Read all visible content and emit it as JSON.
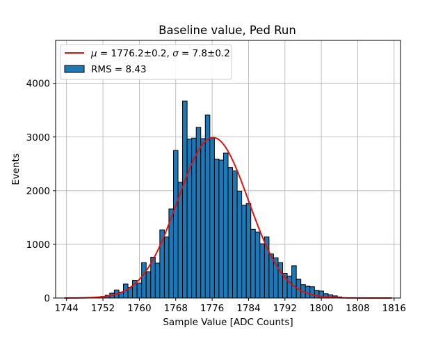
{
  "chart_data": {
    "type": "bar",
    "title": "Baseline value, Ped Run",
    "xlabel": "Sample Value [ADC Counts]",
    "ylabel": "Events",
    "xlim": [
      1741.6,
      1817.4
    ],
    "ylim": [
      0,
      4800
    ],
    "xticks": [
      1744,
      1752,
      1760,
      1768,
      1776,
      1784,
      1792,
      1800,
      1808,
      1816
    ],
    "yticks": [
      0,
      1000,
      2000,
      3000,
      4000
    ],
    "grid": true,
    "legend_position": "top-left",
    "bin_width": 1,
    "bins": [
      {
        "x": 1752,
        "y": 30
      },
      {
        "x": 1753,
        "y": 50
      },
      {
        "x": 1754,
        "y": 90
      },
      {
        "x": 1755,
        "y": 150
      },
      {
        "x": 1756,
        "y": 110
      },
      {
        "x": 1757,
        "y": 260
      },
      {
        "x": 1758,
        "y": 200
      },
      {
        "x": 1759,
        "y": 330
      },
      {
        "x": 1760,
        "y": 280
      },
      {
        "x": 1761,
        "y": 660
      },
      {
        "x": 1762,
        "y": 490
      },
      {
        "x": 1763,
        "y": 760
      },
      {
        "x": 1764,
        "y": 650
      },
      {
        "x": 1765,
        "y": 1270
      },
      {
        "x": 1766,
        "y": 1140
      },
      {
        "x": 1767,
        "y": 1660
      },
      {
        "x": 1768,
        "y": 2750
      },
      {
        "x": 1769,
        "y": 2160
      },
      {
        "x": 1770,
        "y": 3670
      },
      {
        "x": 1771,
        "y": 2960
      },
      {
        "x": 1772,
        "y": 2980
      },
      {
        "x": 1773,
        "y": 3180
      },
      {
        "x": 1774,
        "y": 2970
      },
      {
        "x": 1775,
        "y": 3410
      },
      {
        "x": 1776,
        "y": 2980
      },
      {
        "x": 1777,
        "y": 2590
      },
      {
        "x": 1778,
        "y": 2570
      },
      {
        "x": 1779,
        "y": 2700
      },
      {
        "x": 1780,
        "y": 2430
      },
      {
        "x": 1781,
        "y": 2370
      },
      {
        "x": 1782,
        "y": 1990
      },
      {
        "x": 1783,
        "y": 1730
      },
      {
        "x": 1784,
        "y": 1760
      },
      {
        "x": 1785,
        "y": 1280
      },
      {
        "x": 1786,
        "y": 1230
      },
      {
        "x": 1787,
        "y": 1010
      },
      {
        "x": 1788,
        "y": 1140
      },
      {
        "x": 1789,
        "y": 820
      },
      {
        "x": 1790,
        "y": 750
      },
      {
        "x": 1791,
        "y": 660
      },
      {
        "x": 1792,
        "y": 460
      },
      {
        "x": 1793,
        "y": 410
      },
      {
        "x": 1794,
        "y": 600
      },
      {
        "x": 1795,
        "y": 350
      },
      {
        "x": 1796,
        "y": 250
      },
      {
        "x": 1797,
        "y": 220
      },
      {
        "x": 1798,
        "y": 210
      },
      {
        "x": 1799,
        "y": 140
      },
      {
        "x": 1800,
        "y": 130
      },
      {
        "x": 1801,
        "y": 80
      },
      {
        "x": 1802,
        "y": 60
      },
      {
        "x": 1803,
        "y": 40
      },
      {
        "x": 1804,
        "y": 20
      }
    ],
    "fit": {
      "mu": 1776.2,
      "sigma": 7.8,
      "amplitude": 2990,
      "x_range": [
        1743.5,
        1815.5
      ]
    },
    "series": [
      {
        "name": "$\\mu = 1776.2\\pm0.2$, $\\sigma = 7.8\\pm0.2$",
        "kind": "line",
        "color": "#e01010"
      },
      {
        "name": "RMS = 8.43",
        "kind": "bar",
        "color": "#1f77b4"
      }
    ],
    "legend": {
      "fit_label_parts": [
        "μ",
        " = 1776.2±0.2, ",
        "σ",
        " = 7.8±0.2"
      ],
      "hist_label": "RMS = 8.43"
    }
  }
}
